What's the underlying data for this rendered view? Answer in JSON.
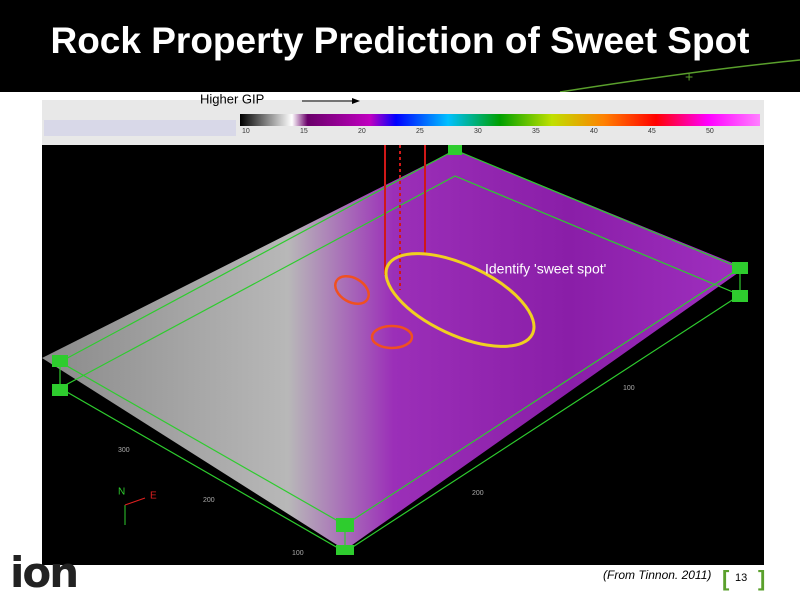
{
  "header": {
    "title": "Rock Property Prediction of Sweet Spot"
  },
  "screenshot": {
    "legend_arrow_label": "Higher GIP",
    "colorbar_ticks": [
      "10",
      "15",
      "20",
      "25",
      "30",
      "35",
      "40",
      "45",
      "50"
    ],
    "annotation": "Identify 'sweet spot'",
    "axis_labels": [
      "300",
      "200",
      "100",
      "200",
      "100"
    ],
    "compass": [
      "N",
      "E"
    ]
  },
  "footer": {
    "logo": "ion",
    "source": "(From Tinnon. 2011)",
    "page_number": "13"
  }
}
